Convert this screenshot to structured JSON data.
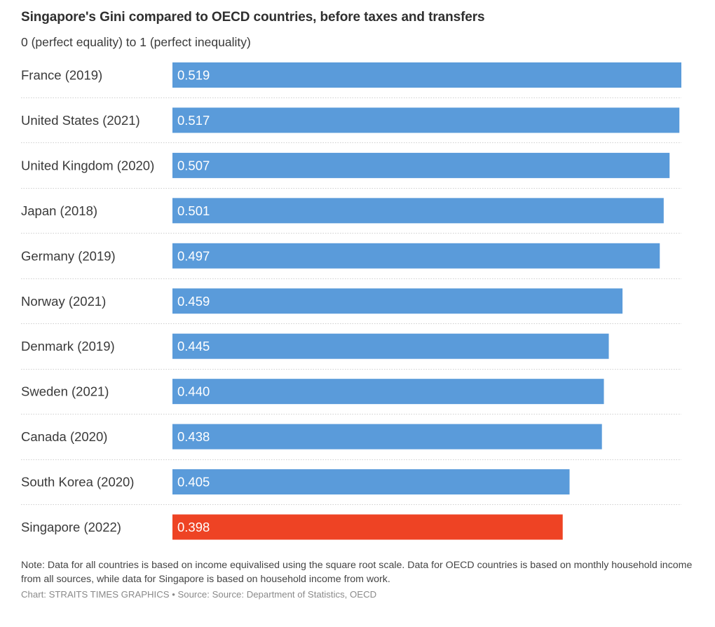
{
  "chart_data": {
    "type": "bar",
    "orientation": "horizontal",
    "title": "Singapore's Gini compared to OECD countries, before taxes and transfers",
    "subtitle": "0 (perfect equality) to 1 (perfect inequality)",
    "categories": [
      "France (2019)",
      "United States (2021)",
      "United Kingdom (2020)",
      "Japan (2018)",
      "Germany (2019)",
      "Norway (2021)",
      "Denmark (2019)",
      "Sweden (2021)",
      "Canada (2020)",
      "South Korea (2020)",
      "Singapore (2022)"
    ],
    "values": [
      0.519,
      0.517,
      0.507,
      0.501,
      0.497,
      0.459,
      0.445,
      0.44,
      0.438,
      0.405,
      0.398
    ],
    "value_labels": [
      "0.519",
      "0.517",
      "0.507",
      "0.501",
      "0.497",
      "0.459",
      "0.445",
      "0.440",
      "0.438",
      "0.405",
      "0.398"
    ],
    "highlight": [
      "Singapore (2022)"
    ],
    "xlim": [
      0,
      0.519
    ],
    "xlabel": "",
    "ylabel": "",
    "grid": false,
    "colors": {
      "default": "#5a9bda",
      "highlight": "#ee4324"
    }
  },
  "footer": {
    "note": "Note: Data for all countries is based on income equivalised using the square root scale. Data for OECD countries is based on monthly household income from all sources, while data for Singapore is based on household income from work.",
    "credit": "Chart: STRAITS TIMES GRAPHICS • Source: Source: Department of Statistics, OECD"
  }
}
